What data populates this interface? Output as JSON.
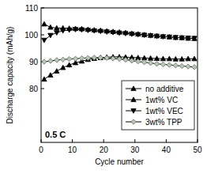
{
  "chart_data": {
    "type": "line",
    "x_label": "Cycle number",
    "y_label": "Discharge capacity (mAh/g)",
    "annotations": [
      "0.5 C"
    ],
    "x": [
      1,
      3,
      5,
      7,
      9,
      11,
      13,
      15,
      17,
      19,
      21,
      23,
      25,
      27,
      29,
      31,
      33,
      35,
      37,
      39,
      41,
      43,
      45,
      47,
      49
    ],
    "series": [
      {
        "name": "no additive",
        "color": "#000000",
        "marker": "triangle-up",
        "line_style": "solid",
        "values": [
          104,
          102.8,
          102.5,
          102.5,
          102.4,
          102.3,
          102.2,
          102,
          101.8,
          101.6,
          101.4,
          101.2,
          101,
          100.8,
          100.5,
          100.3,
          100,
          99.8,
          99.6,
          99.4,
          99.2,
          99,
          98.9,
          98.7,
          98.6
        ]
      },
      {
        "name": "1wt% VC",
        "color": "#000000",
        "marker": "triangle-up",
        "line_style": "solid",
        "values": [
          83.5,
          85,
          86.5,
          87.8,
          88.8,
          89.6,
          90.2,
          90.8,
          91.2,
          91.5,
          91.7,
          91.8,
          91.8,
          91.7,
          91.6,
          91.5,
          91.4,
          91.3,
          91.2,
          91.1,
          91.1,
          91,
          91,
          91.1,
          91.1
        ]
      },
      {
        "name": "1wt% VEC",
        "color": "#000000",
        "marker": "triangle-down",
        "line_style": "solid",
        "values": [
          98,
          99.8,
          100.8,
          101.5,
          101.8,
          102,
          101.9,
          101.7,
          101.5,
          101.3,
          101.1,
          100.9,
          100.7,
          100.5,
          100.3,
          100.1,
          99.9,
          99.7,
          99.5,
          99.3,
          99.2,
          99,
          98.9,
          98.8,
          98.7
        ]
      },
      {
        "name": "3wt% TPP",
        "color": "#5f6f5f",
        "marker": "diamond",
        "line_style": "solid",
        "values": [
          90,
          90.3,
          90.6,
          90.8,
          91,
          91.1,
          91.3,
          91.4,
          91.5,
          91.5,
          91.4,
          91.2,
          91,
          90.7,
          90.4,
          90.1,
          89.8,
          89.5,
          89.2,
          89,
          88.8,
          88.6,
          88.4,
          88.2,
          88
        ]
      }
    ],
    "xlim": [
      0,
      50
    ],
    "xticks": [
      0,
      10,
      20,
      30,
      40,
      50
    ],
    "ylim": [
      60,
      110
    ],
    "yticks": [
      80,
      90,
      100,
      110
    ],
    "grid": false,
    "legend": "lower-right"
  }
}
